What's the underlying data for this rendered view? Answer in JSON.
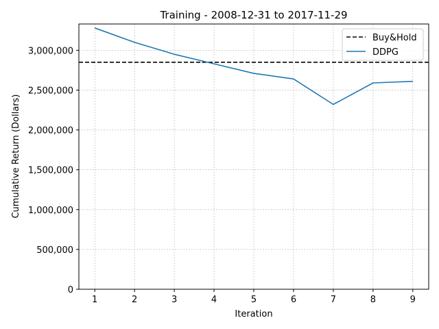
{
  "chart_data": {
    "type": "line",
    "title": "Training - 2008-12-31 to 2017-11-29",
    "xlabel": "Iteration",
    "ylabel": "Cumulative Return (Dollars)",
    "xlim": [
      0.6,
      9.4
    ],
    "ylim": [
      0,
      3330000
    ],
    "xticks": [
      1,
      2,
      3,
      4,
      5,
      6,
      7,
      8,
      9
    ],
    "xtick_labels": [
      "1",
      "2",
      "3",
      "4",
      "5",
      "6",
      "7",
      "8",
      "9"
    ],
    "yticks": [
      0,
      500000,
      1000000,
      1500000,
      2000000,
      2500000,
      3000000
    ],
    "ytick_labels": [
      "0",
      "500,000",
      "1,000,000",
      "1,500,000",
      "2,000,000",
      "2,500,000",
      "3,000,000"
    ],
    "grid": true,
    "legend_position": "top-right",
    "series": [
      {
        "name": "Buy&Hold",
        "style": "dashed",
        "color": "#000000",
        "kind": "horizontal",
        "y": 2850000
      },
      {
        "name": "DDPG",
        "style": "solid",
        "color": "#1f77b4",
        "x": [
          1,
          2,
          3,
          4,
          5,
          6,
          7,
          8,
          9
        ],
        "y": [
          3280000,
          3100000,
          2950000,
          2830000,
          2710000,
          2640000,
          2320000,
          2590000,
          2610000
        ]
      }
    ]
  }
}
